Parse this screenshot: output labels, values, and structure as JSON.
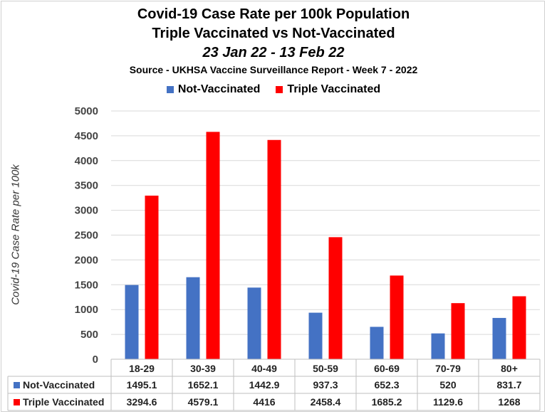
{
  "chart_data": {
    "type": "bar",
    "title": "Covid-19 Case Rate per 100k Population",
    "subtitle": "Triple Vaccinated vs Not-Vaccinated",
    "date_range": "23 Jan 22 - 13 Feb 22",
    "source": "Source - UKHSA Vaccine Surveillance Report - Week 7 - 2022",
    "xlabel": "",
    "ylabel": "Covid-19 Case Rate per 100k",
    "ylim": [
      0,
      5000
    ],
    "yticks": [
      0,
      500,
      1000,
      1500,
      2000,
      2500,
      3000,
      3500,
      4000,
      4500,
      5000
    ],
    "grid": true,
    "legend_position": "top",
    "categories": [
      "18-29",
      "30-39",
      "40-49",
      "50-59",
      "60-69",
      "70-79",
      "80+"
    ],
    "series": [
      {
        "name": "Not-Vaccinated",
        "color": "#4472c4",
        "values": [
          1495.1,
          1652.1,
          1442.9,
          937.3,
          652.3,
          520,
          831.7
        ],
        "labels": [
          "1495.1",
          "1652.1",
          "1442.9",
          "937.3",
          "652.3",
          "520",
          "831.7"
        ]
      },
      {
        "name": "Triple Vaccinated",
        "color": "#ff0000",
        "values": [
          3294.6,
          4579.1,
          4416,
          2458.4,
          1685.2,
          1129.6,
          1268
        ],
        "labels": [
          "3294.6",
          "4579.1",
          "4416",
          "2458.4",
          "1685.2",
          "1129.6",
          "1268"
        ]
      }
    ]
  }
}
